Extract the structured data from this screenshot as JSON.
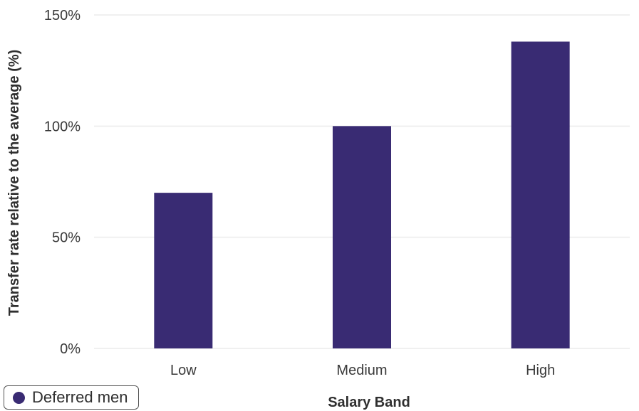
{
  "chart_data": {
    "type": "bar",
    "categories": [
      "Low",
      "Medium",
      "High"
    ],
    "series": [
      {
        "name": "Deferred men",
        "values": [
          70,
          100,
          138
        ],
        "color": "#392b73"
      }
    ],
    "ylim": [
      0,
      150
    ],
    "yticks": [
      0,
      50,
      100,
      150
    ],
    "ytick_labels": [
      "0%",
      "50%",
      "100%",
      "150%"
    ],
    "xlabel": "Salary Band",
    "ylabel": "Transfer rate relative to the average (%)",
    "grid": true,
    "legend_position": "bottom-left"
  }
}
